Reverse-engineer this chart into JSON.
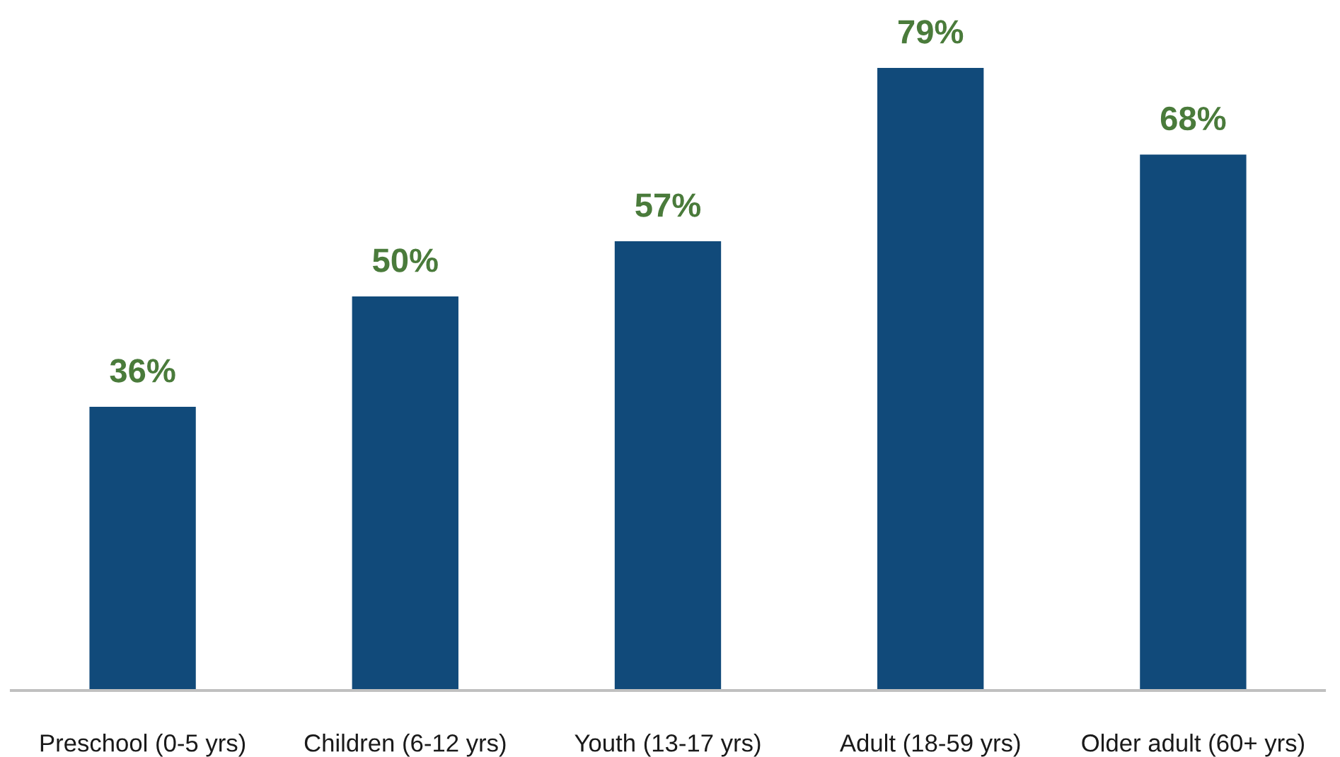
{
  "chart_data": {
    "type": "bar",
    "categories": [
      "Preschool (0-5 yrs)",
      "Children (6-12 yrs)",
      "Youth (13-17 yrs)",
      "Adult (18-59 yrs)",
      "Older adult (60+ yrs)"
    ],
    "values": [
      36,
      50,
      57,
      79,
      68
    ],
    "value_labels": [
      "36%",
      "50%",
      "57%",
      "79%",
      "68%"
    ],
    "color": "#114a7a"
  }
}
